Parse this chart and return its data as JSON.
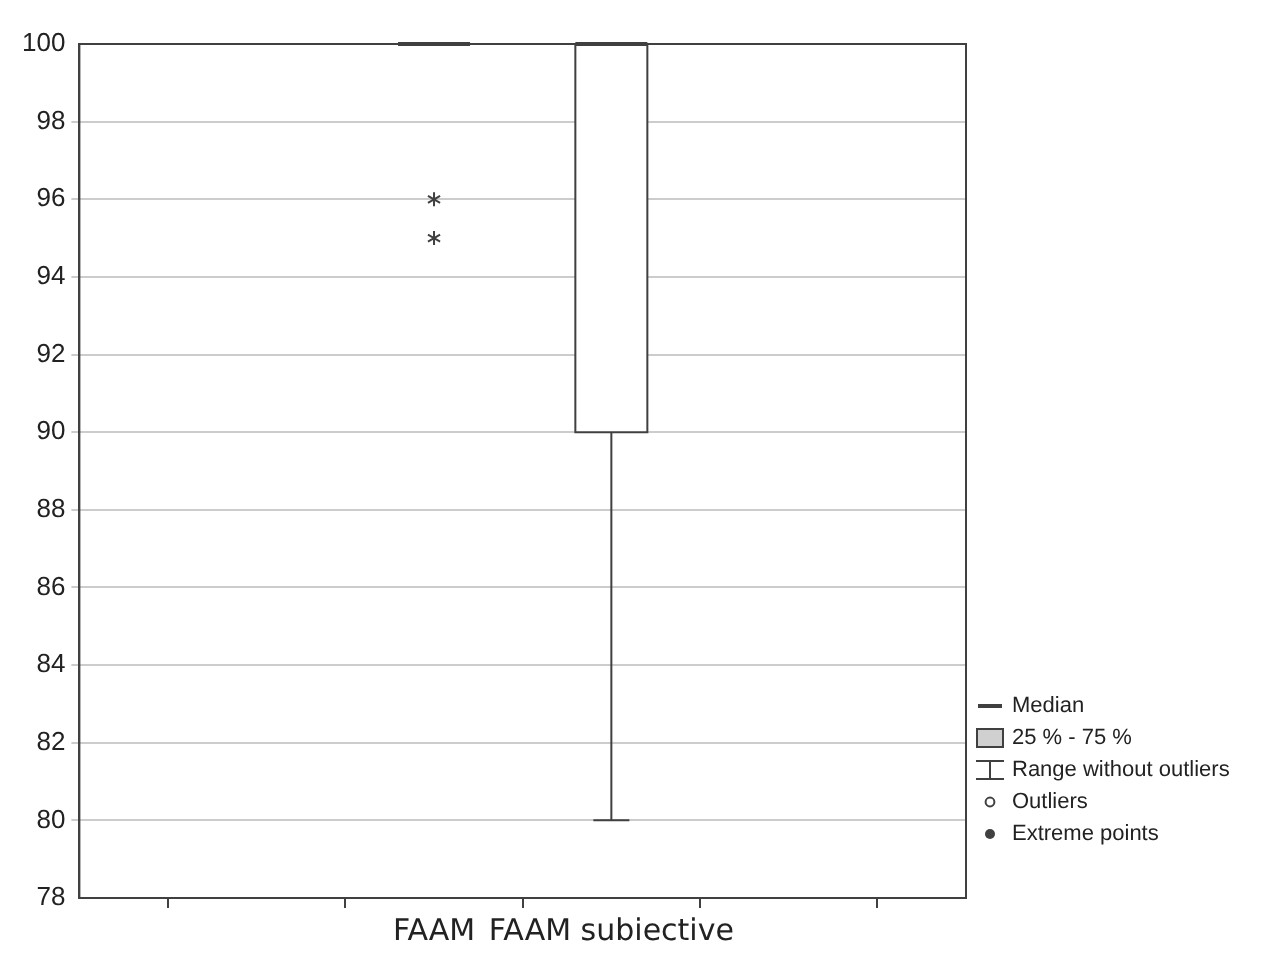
{
  "chart_data": {
    "type": "box",
    "categories": [
      null,
      null,
      "FAAM",
      "FAAM subiective",
      null,
      null
    ],
    "boxes": [
      null,
      null,
      {
        "low": 100,
        "q1": 100,
        "median": 100,
        "q3": 100,
        "high": 100,
        "outliers": [
          96,
          95
        ]
      },
      {
        "low": 80,
        "q1": 90,
        "median": 100,
        "q3": 100,
        "high": 100
      },
      null,
      null
    ],
    "ylim": [
      78,
      100
    ],
    "yticks": [
      78,
      80,
      82,
      84,
      86,
      88,
      90,
      92,
      94,
      96,
      98,
      100
    ],
    "grid": "y",
    "marker": "star",
    "annotations": [
      "Median",
      "25 % - 75 %",
      "Range without outliers",
      "Outliers",
      "Extreme points"
    ]
  }
}
